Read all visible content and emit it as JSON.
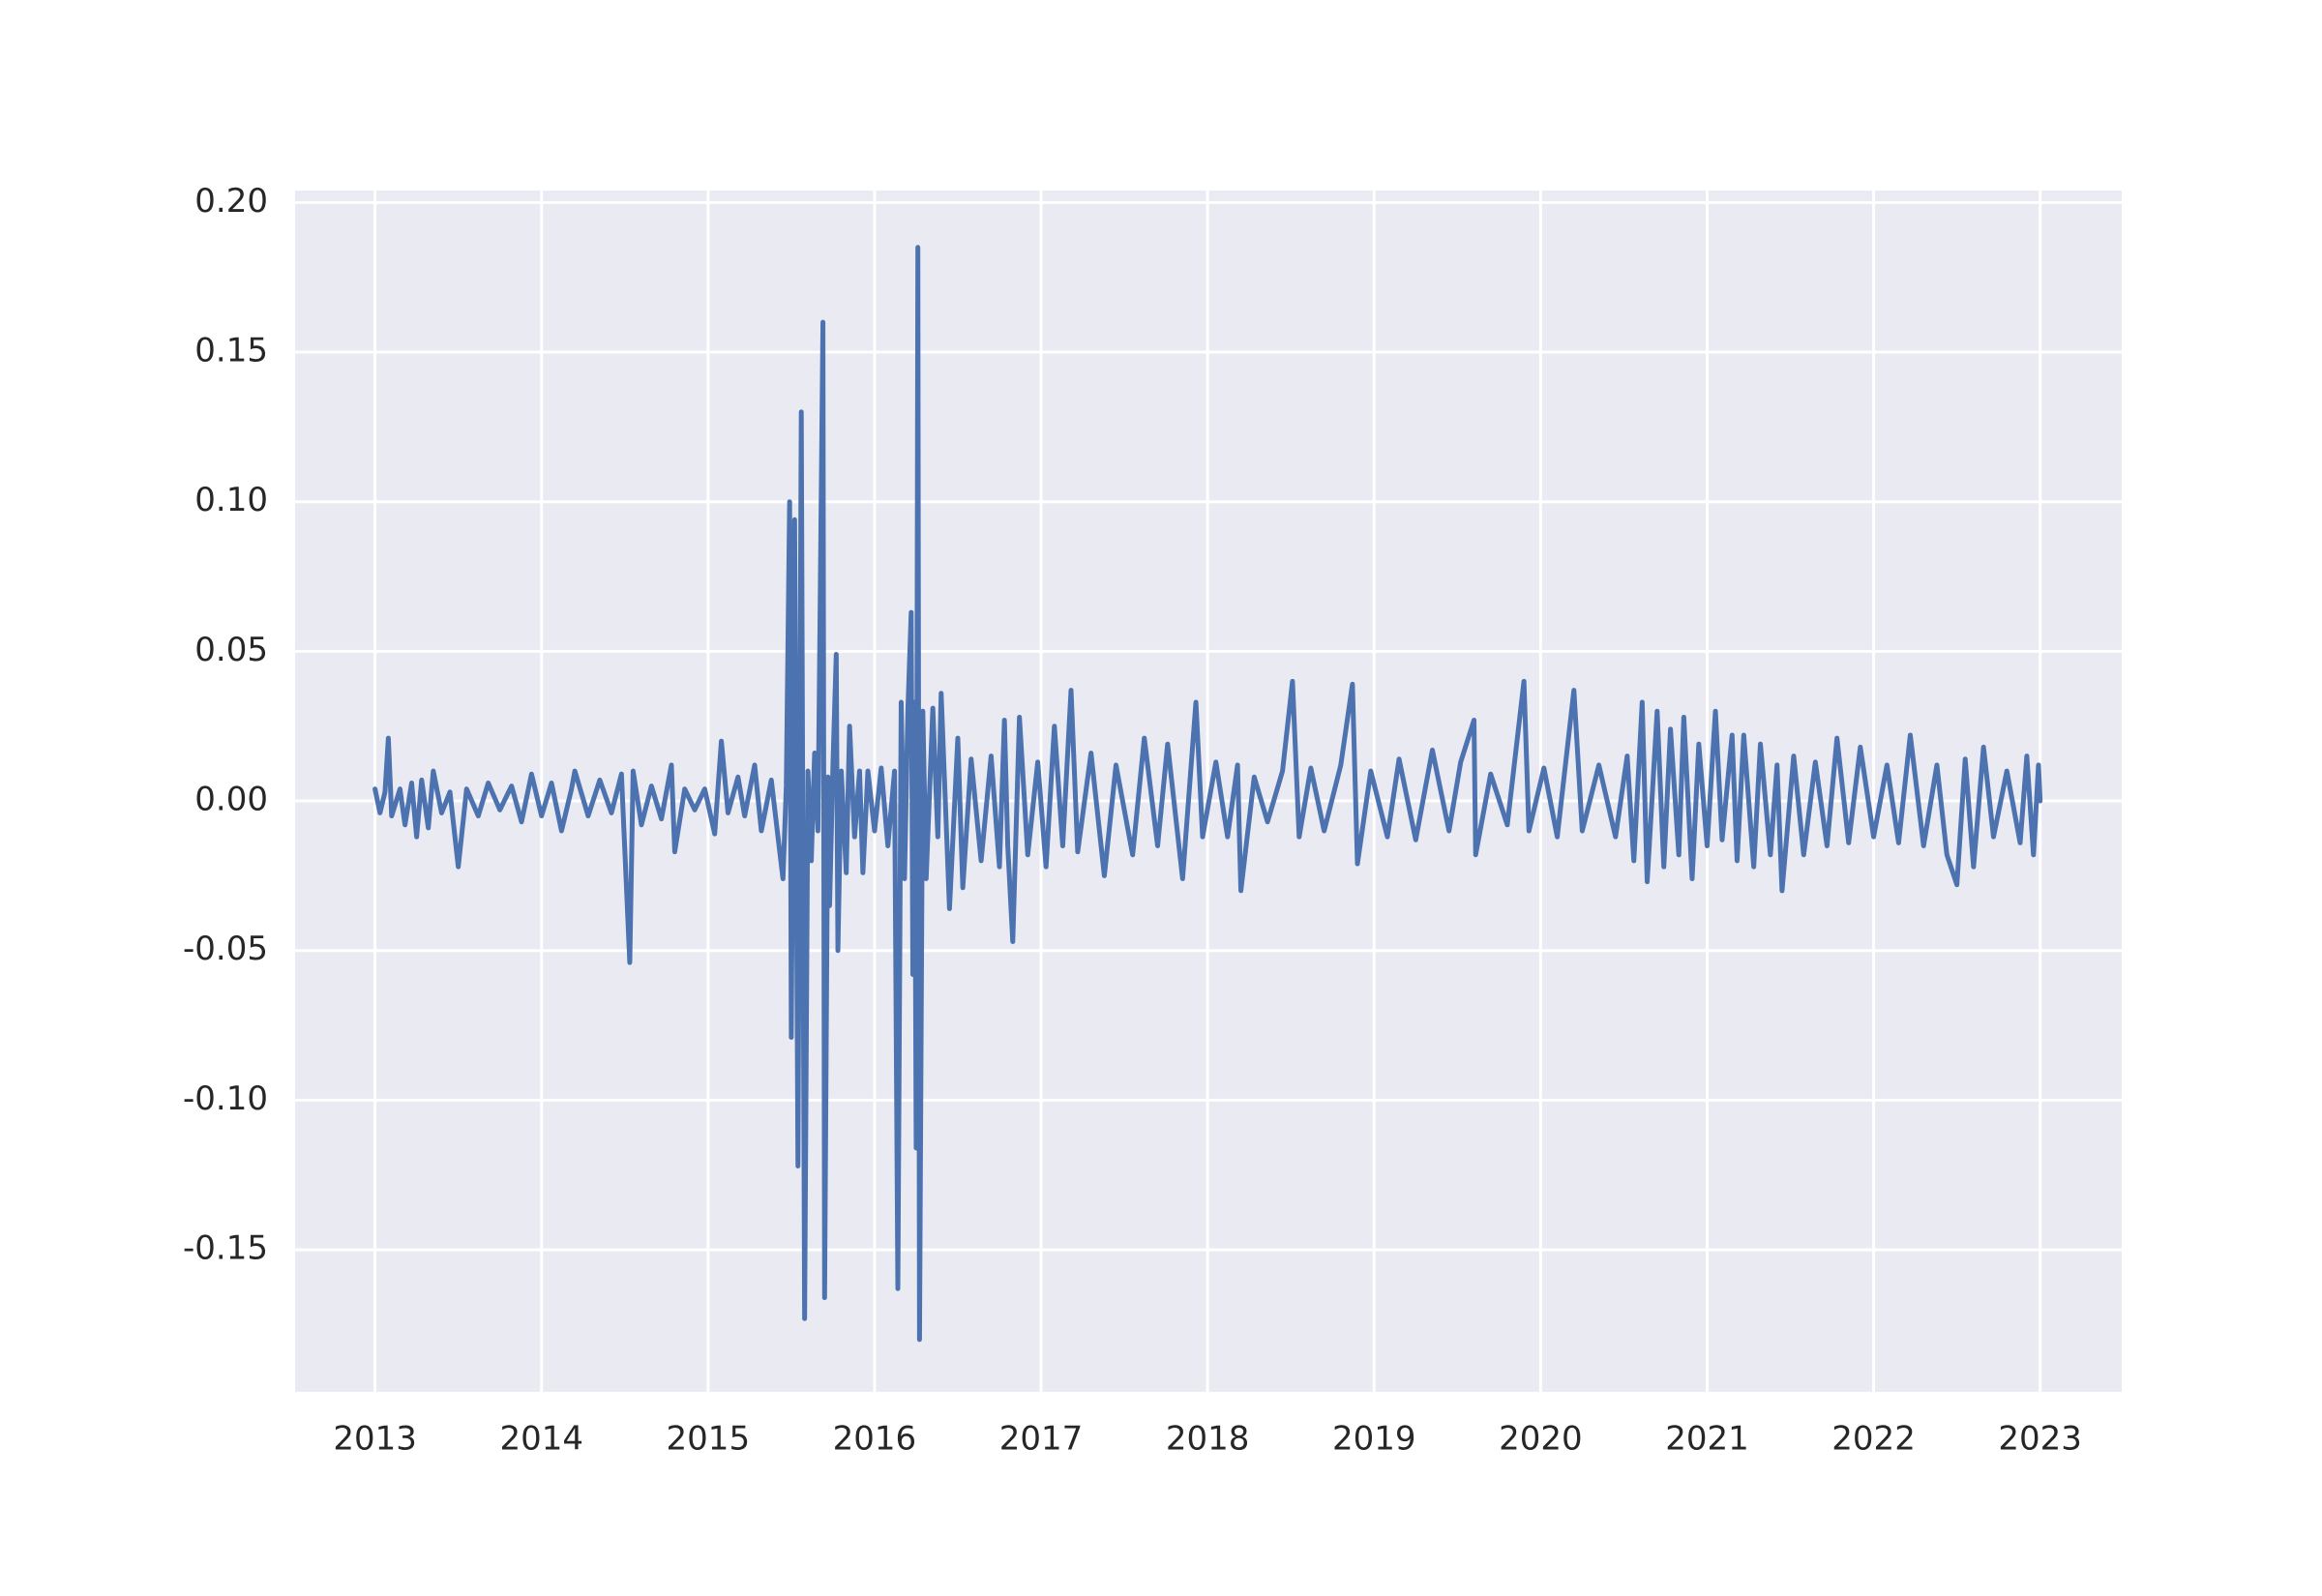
{
  "chart_data": {
    "type": "line",
    "color": "#4c72b0",
    "grid": true,
    "xlim": [
      2012.52,
      2023.49
    ],
    "xticks": [
      2013,
      2014,
      2015,
      2016,
      2017,
      2018,
      2019,
      2020,
      2021,
      2022,
      2023
    ],
    "ylim": [
      -0.1975,
      0.204
    ],
    "yticks": [
      {
        "value": -0.15,
        "label": "-0.15"
      },
      {
        "value": -0.1,
        "label": "-0.10"
      },
      {
        "value": -0.05,
        "label": "-0.05"
      },
      {
        "value": 0,
        "label": "0.00"
      },
      {
        "value": 0.05,
        "label": "0.05"
      },
      {
        "value": 0.1,
        "label": "0.10"
      },
      {
        "value": 0.15,
        "label": "0.15"
      },
      {
        "value": 0.2,
        "label": "0.20"
      }
    ],
    "x": [
      2013.0,
      2013.03,
      2013.06,
      2013.08,
      2013.1,
      2013.15,
      2013.18,
      2013.22,
      2013.25,
      2013.28,
      2013.32,
      2013.35,
      2013.4,
      2013.45,
      2013.5,
      2013.55,
      2013.62,
      2013.68,
      2013.75,
      2013.82,
      2013.88,
      2013.94,
      2014.0,
      2014.06,
      2014.12,
      2014.18,
      2014.2,
      2014.28,
      2014.35,
      2014.42,
      2014.48,
      2014.53,
      2014.55,
      2014.6,
      2014.66,
      2014.72,
      2014.78,
      2014.8,
      2014.86,
      2014.92,
      2014.98,
      2015.04,
      2015.08,
      2015.12,
      2015.18,
      2015.22,
      2015.28,
      2015.32,
      2015.38,
      2015.42,
      2015.45,
      2015.47,
      2015.49,
      2015.5,
      2015.52,
      2015.54,
      2015.56,
      2015.58,
      2015.6,
      2015.62,
      2015.64,
      2015.66,
      2015.69,
      2015.7,
      2015.72,
      2015.73,
      2015.75,
      2015.77,
      2015.78,
      2015.8,
      2015.83,
      2015.85,
      2015.88,
      2015.91,
      2015.93,
      2015.96,
      2016.0,
      2016.04,
      2016.08,
      2016.12,
      2016.14,
      2016.16,
      2016.18,
      2016.2,
      2016.22,
      2016.23,
      2016.24,
      2016.25,
      2016.26,
      2016.27,
      2016.29,
      2016.31,
      2016.35,
      2016.38,
      2016.4,
      2016.45,
      2016.5,
      2016.53,
      2016.58,
      2016.64,
      2016.7,
      2016.75,
      2016.78,
      2016.8,
      2016.83,
      2016.87,
      2016.92,
      2016.98,
      2017.03,
      2017.08,
      2017.13,
      2017.18,
      2017.22,
      2017.3,
      2017.38,
      2017.45,
      2017.55,
      2017.62,
      2017.7,
      2017.76,
      2017.85,
      2017.93,
      2017.97,
      2018.05,
      2018.12,
      2018.18,
      2018.2,
      2018.28,
      2018.36,
      2018.45,
      2018.51,
      2018.55,
      2018.62,
      2018.7,
      2018.8,
      2018.87,
      2018.9,
      2018.98,
      2019.08,
      2019.15,
      2019.25,
      2019.35,
      2019.45,
      2019.52,
      2019.6,
      2019.61,
      2019.7,
      2019.8,
      2019.9,
      2019.93,
      2020.02,
      2020.1,
      2020.2,
      2020.25,
      2020.35,
      2020.45,
      2020.52,
      2020.56,
      2020.61,
      2020.64,
      2020.7,
      2020.74,
      2020.78,
      2020.83,
      2020.86,
      2020.91,
      2020.95,
      2021.0,
      2021.05,
      2021.09,
      2021.15,
      2021.18,
      2021.22,
      2021.28,
      2021.32,
      2021.38,
      2021.42,
      2021.45,
      2021.52,
      2021.58,
      2021.65,
      2021.72,
      2021.78,
      2021.85,
      2021.92,
      2022.0,
      2022.08,
      2022.15,
      2022.22,
      2022.3,
      2022.38,
      2022.44,
      2022.5,
      2022.55,
      2022.6,
      2022.66,
      2022.72,
      2022.8,
      2022.88,
      2022.92,
      2022.96,
      2022.99,
      2023.0
    ],
    "values": [
      0.004,
      -0.004,
      0.003,
      0.021,
      -0.005,
      0.004,
      -0.008,
      0.006,
      -0.012,
      0.007,
      -0.009,
      0.01,
      -0.004,
      0.003,
      -0.022,
      0.004,
      -0.005,
      0.006,
      -0.003,
      0.005,
      -0.007,
      0.009,
      -0.005,
      0.006,
      -0.01,
      0.004,
      0.01,
      -0.005,
      0.007,
      -0.004,
      0.009,
      -0.054,
      0.01,
      -0.008,
      0.005,
      -0.006,
      0.012,
      -0.017,
      0.004,
      -0.003,
      0.004,
      -0.011,
      0.02,
      -0.004,
      0.008,
      -0.005,
      0.012,
      -0.01,
      0.007,
      -0.012,
      -0.026,
      0.005,
      0.1,
      -0.079,
      0.094,
      -0.122,
      0.13,
      -0.173,
      0.01,
      -0.02,
      0.016,
      -0.01,
      0.16,
      -0.166,
      0.008,
      -0.035,
      0.012,
      0.049,
      -0.05,
      0.01,
      -0.024,
      0.025,
      -0.012,
      0.01,
      -0.024,
      0.01,
      -0.01,
      0.011,
      -0.015,
      0.01,
      -0.163,
      0.033,
      -0.026,
      0.03,
      0.063,
      -0.058,
      0.033,
      -0.116,
      0.185,
      -0.18,
      0.03,
      -0.026,
      0.031,
      -0.012,
      0.036,
      -0.036,
      0.021,
      -0.029,
      0.014,
      -0.02,
      0.015,
      -0.022,
      0.027,
      -0.015,
      -0.047,
      0.028,
      -0.018,
      0.013,
      -0.022,
      0.025,
      -0.015,
      0.037,
      -0.017,
      0.016,
      -0.025,
      0.012,
      -0.018,
      0.021,
      -0.015,
      0.019,
      -0.026,
      0.033,
      -0.012,
      0.013,
      -0.012,
      0.012,
      -0.03,
      0.008,
      -0.007,
      0.01,
      0.04,
      -0.012,
      0.011,
      -0.01,
      0.012,
      0.039,
      -0.021,
      0.01,
      -0.012,
      0.014,
      -0.013,
      0.017,
      -0.01,
      0.013,
      0.027,
      -0.018,
      0.009,
      -0.008,
      0.04,
      -0.01,
      0.011,
      -0.012,
      0.037,
      -0.01,
      0.012,
      -0.012,
      0.015,
      -0.02,
      0.033,
      -0.027,
      0.03,
      -0.022,
      0.024,
      -0.018,
      0.028,
      -0.026,
      0.019,
      -0.015,
      0.03,
      -0.013,
      0.022,
      -0.02,
      0.022,
      -0.022,
      0.019,
      -0.018,
      0.012,
      -0.03,
      0.015,
      -0.018,
      0.013,
      -0.015,
      0.021,
      -0.014,
      0.018,
      -0.012,
      0.012,
      -0.014,
      0.022,
      -0.015,
      0.012,
      -0.018,
      -0.028,
      0.014,
      -0.022,
      0.018,
      -0.012,
      0.01,
      -0.014,
      0.015,
      -0.018,
      0.012,
      0.0
    ]
  }
}
